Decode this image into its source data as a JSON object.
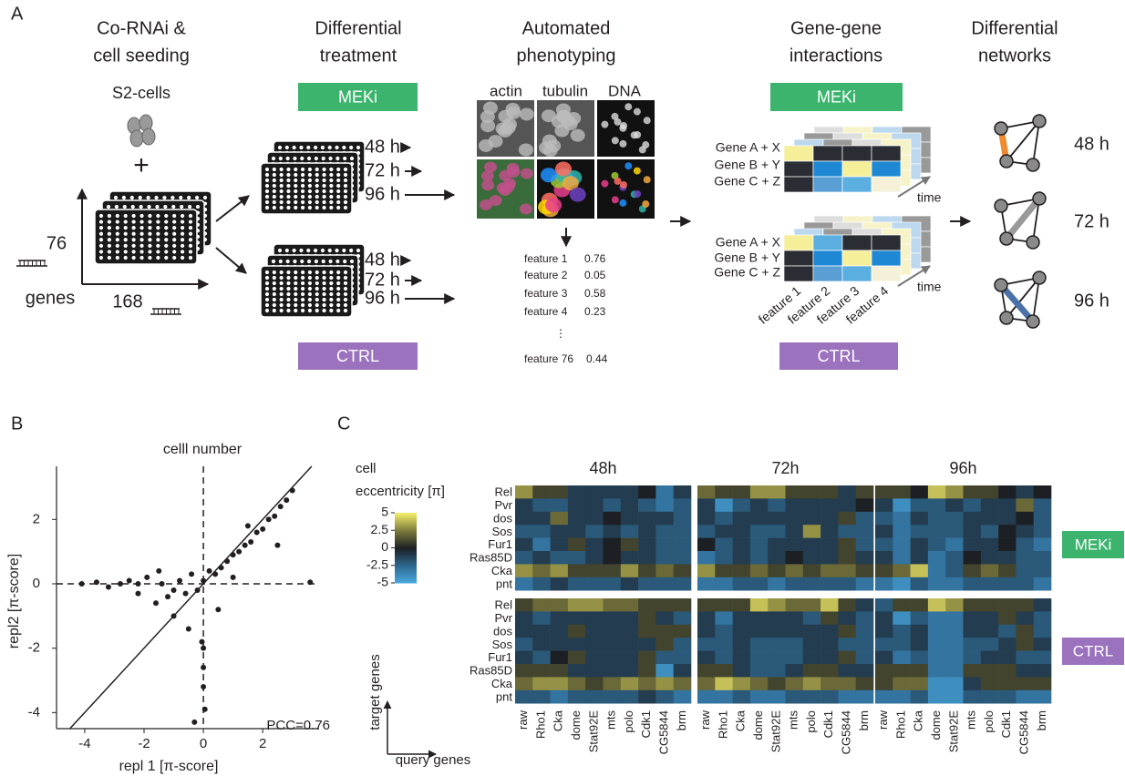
{
  "panel_labels": [
    "A",
    "B",
    "C"
  ],
  "diagram": {
    "steps": [
      [
        "Co-RNAi &",
        "cell seeding"
      ],
      [
        "Differential",
        "treatment"
      ],
      [
        "Automated",
        "phenotyping"
      ],
      [
        "Gene-gene",
        "interactions"
      ],
      [
        "Differential",
        "networks"
      ]
    ],
    "cells": "S2-cells",
    "plus": "+",
    "n_target": "76",
    "n_query": "168",
    "genes": "genes",
    "treatments": [
      {
        "name": "MEKi",
        "color": "#3cb46e"
      },
      {
        "name": "CTRL",
        "color": "#9b72bd"
      }
    ],
    "times": [
      "48 h",
      "72 h",
      "96 h"
    ],
    "channels": [
      "actin",
      "tubulin",
      "DNA"
    ],
    "features": [
      {
        "name": "feature 1",
        "value": 0.76
      },
      {
        "name": "feature 2",
        "value": 0.05
      },
      {
        "name": "feature 3",
        "value": 0.58
      },
      {
        "name": "feature 4",
        "value": 0.23
      },
      {
        "name": "feature 76",
        "value": 0.44
      }
    ],
    "ellipsis": "⋮",
    "gene_pairs": [
      "Gene A + X",
      "Gene B + Y",
      "Gene C + Z"
    ],
    "time": "time",
    "feature_axis": [
      "feature 1",
      "feature 2",
      "feature 3",
      "feature 4"
    ]
  },
  "chart_data": [
    {
      "type": "scatter",
      "title": "celll number",
      "xlabel": "repl 1 [π-score]",
      "ylabel": "repl2 [π-score]",
      "annotation": "PCC=0.76",
      "xlim": [
        -4.95,
        3.9
      ],
      "ylim": [
        -4.5,
        3.65
      ],
      "xticks": [
        -4,
        -2,
        0,
        2
      ],
      "yticks": [
        -4,
        -2,
        0,
        2
      ],
      "reference_lines": {
        "x": 0,
        "y": 0
      },
      "identity_line": true,
      "color": "#231f20",
      "x": [
        -4.1,
        -3.6,
        -3.2,
        -2.8,
        -2.5,
        -2.2,
        -1.9,
        -1.6,
        -1.4,
        -1.2,
        -1,
        -0.8,
        -0.6,
        -0.4,
        -0.2,
        0,
        0.2,
        0.4,
        0.6,
        0.8,
        1,
        1.2,
        1.4,
        1.6,
        1.8,
        2,
        2.2,
        2.4,
        2.6,
        2.8,
        3,
        -1,
        -0.5,
        0,
        0.5,
        1,
        1.5,
        0,
        0,
        0.05,
        -0.05,
        -1.5,
        -2.2,
        3.6,
        2.5,
        -0.3
      ],
      "y": [
        0,
        0.05,
        -0.1,
        0,
        0.1,
        -0.3,
        0.2,
        -0.6,
        0,
        -0.4,
        -0.2,
        0.1,
        -0.3,
        0.3,
        -0.2,
        0.1,
        0.4,
        0.3,
        0.5,
        0.7,
        0.9,
        1,
        1.2,
        1.3,
        1.6,
        1.7,
        2,
        2.1,
        2.4,
        2.6,
        2.9,
        -1,
        -1.4,
        -2,
        -0.8,
        0.2,
        1.8,
        -2.6,
        -3.2,
        -3.9,
        -1.8,
        0.4,
        0,
        0.05,
        1.2,
        -4.3
      ]
    },
    {
      "type": "heatmap",
      "colorbar_title": [
        "cell",
        "eccentricity [π]"
      ],
      "clim": [
        -5,
        5
      ],
      "cticks": [
        5,
        2.5,
        0,
        -2.5,
        -5
      ],
      "colormap": [
        "#49a9e0",
        "#2e6790",
        "#1c1f24",
        "#7d7b3c",
        "#f5ef6a"
      ],
      "facets": [
        "48h",
        "72h",
        "96h"
      ],
      "rows": [
        "Rel",
        "Pvr",
        "dos",
        "Sos",
        "Fur1",
        "Ras85D",
        "Cka",
        "pnt"
      ],
      "columns": [
        "raw",
        "Rho1",
        "Cka",
        "dome",
        "Stat92E",
        "mts",
        "polo",
        "Cdk1",
        "CG5844",
        "brm"
      ],
      "ylabel": "target genes",
      "xlabel": "query genes",
      "groups": [
        {
          "name": "MEKi",
          "color": "#3cb46e",
          "values": [
            [
              [
                3,
                1,
                1,
                -1,
                -1,
                -1,
                -1,
                0,
                -3,
                -1
              ],
              [
                -1,
                -2,
                -2,
                -1,
                -1,
                -2,
                -1,
                -2,
                -3,
                -2
              ],
              [
                -1,
                -1,
                2,
                -1,
                -1,
                0,
                -1,
                -1,
                -1,
                -2
              ],
              [
                -2,
                -2,
                -1,
                -1,
                -2,
                -1,
                -2,
                -1,
                -2,
                -2
              ],
              [
                -1,
                -3,
                -1,
                1,
                -1,
                0,
                1,
                -1,
                -2,
                -2
              ],
              [
                -2,
                -1,
                -2,
                -2,
                -1,
                0,
                -1,
                -1,
                -2,
                -2
              ],
              [
                3,
                2,
                3,
                1,
                1,
                1,
                3,
                1,
                2,
                1
              ],
              [
                -3,
                -2,
                -1,
                -2,
                -2,
                -2,
                -1,
                -2,
                -2,
                -2
              ]
            ],
            [
              [
                2,
                1,
                1,
                3,
                3,
                1,
                1,
                1,
                -1,
                1
              ],
              [
                -1,
                -4,
                -2,
                -1,
                -2,
                -1,
                -1,
                -1,
                -1,
                0
              ],
              [
                -1,
                -2,
                -1,
                -1,
                -1,
                -1,
                -1,
                -1,
                1,
                -2
              ],
              [
                -2,
                -1,
                -1,
                -2,
                -2,
                -1,
                3,
                -1,
                -2,
                -2
              ],
              [
                0,
                -2,
                -1,
                -2,
                -1,
                -1,
                -1,
                -1,
                1,
                -2
              ],
              [
                -3,
                -2,
                -1,
                -2,
                -1,
                0,
                -1,
                -1,
                1,
                -1
              ],
              [
                3,
                1,
                1,
                2,
                1,
                2,
                1,
                2,
                2,
                1
              ],
              [
                -3,
                -3,
                -2,
                -2,
                -3,
                -2,
                -2,
                -2,
                -2,
                -3
              ]
            ],
            [
              [
                1,
                1,
                0,
                4,
                3,
                1,
                1,
                0,
                -1,
                0
              ],
              [
                -1,
                -4,
                -2,
                -2,
                -1,
                -2,
                -1,
                -1,
                2,
                -2
              ],
              [
                -2,
                -3,
                -1,
                -2,
                -2,
                -1,
                -1,
                -1,
                0,
                -2
              ],
              [
                -1,
                -3,
                -2,
                -2,
                -2,
                -1,
                -2,
                0,
                -1,
                -2
              ],
              [
                -2,
                -3,
                -1,
                -2,
                -3,
                -1,
                -1,
                0,
                -2,
                -3
              ],
              [
                -1,
                -3,
                -1,
                -3,
                -2,
                0,
                -1,
                -1,
                -2,
                -2
              ],
              [
                1,
                2,
                4,
                -3,
                -2,
                1,
                2,
                1,
                -2,
                -2
              ],
              [
                -3,
                -4,
                -2,
                -3,
                -3,
                -2,
                -2,
                -2,
                -2,
                -3
              ]
            ]
          ]
        },
        {
          "name": "CTRL",
          "color": "#9b72bd",
          "values": [
            [
              [
                1,
                2,
                2,
                3,
                3,
                2,
                2,
                1,
                1,
                1
              ],
              [
                -1,
                -2,
                -1,
                -1,
                -1,
                -1,
                -1,
                1,
                -1,
                -2
              ],
              [
                -1,
                -1,
                -1,
                1,
                -1,
                -1,
                -1,
                1,
                1,
                1
              ],
              [
                -2,
                -1,
                -1,
                -1,
                -1,
                -1,
                -1,
                -1,
                1,
                -2
              ],
              [
                -1,
                -2,
                0,
                1,
                -1,
                -1,
                -1,
                1,
                -2,
                -2
              ],
              [
                1,
                1,
                1,
                -1,
                -1,
                -1,
                -1,
                1,
                -4,
                -1
              ],
              [
                2,
                3,
                3,
                2,
                1,
                2,
                3,
                2,
                3,
                2
              ],
              [
                -2,
                -2,
                -3,
                -2,
                -2,
                -2,
                -2,
                -1,
                -2,
                -3
              ]
            ],
            [
              [
                1,
                1,
                1,
                4,
                3,
                2,
                2,
                4,
                1,
                -1
              ],
              [
                -1,
                -3,
                -1,
                -1,
                -1,
                -1,
                -2,
                1,
                -1,
                -2
              ],
              [
                -1,
                -2,
                -1,
                -1,
                -1,
                -1,
                -1,
                -1,
                1,
                -2
              ],
              [
                -2,
                -2,
                -1,
                -2,
                -2,
                -2,
                -1,
                -1,
                -2,
                -2
              ],
              [
                -1,
                -2,
                -1,
                -2,
                -2,
                -2,
                -1,
                -1,
                1,
                -2
              ],
              [
                1,
                1,
                -1,
                -2,
                -2,
                -1,
                1,
                1,
                -1,
                -1
              ],
              [
                2,
                4,
                3,
                2,
                1,
                2,
                3,
                2,
                2,
                1
              ],
              [
                -3,
                -3,
                -2,
                -3,
                -3,
                -2,
                -2,
                -2,
                -3,
                -3
              ]
            ],
            [
              [
                -2,
                1,
                1,
                4,
                3,
                1,
                1,
                1,
                1,
                -1
              ],
              [
                -1,
                -4,
                -2,
                -3,
                -3,
                -1,
                -1,
                1,
                -1,
                -2
              ],
              [
                -1,
                -2,
                -1,
                -3,
                -3,
                -1,
                -1,
                -2,
                1,
                -2
              ],
              [
                -2,
                -2,
                -1,
                -3,
                -3,
                -2,
                -2,
                -1,
                1,
                -1
              ],
              [
                -1,
                -3,
                -2,
                -3,
                -3,
                -2,
                -1,
                -1,
                -2,
                -2
              ],
              [
                1,
                1,
                1,
                -3,
                -3,
                1,
                1,
                1,
                -1,
                -1
              ],
              [
                1,
                2,
                2,
                -4,
                -4,
                -1,
                1,
                1,
                1,
                1
              ],
              [
                -3,
                -3,
                -2,
                -4,
                -4,
                -2,
                -2,
                -2,
                -3,
                -3
              ]
            ]
          ]
        }
      ]
    }
  ]
}
